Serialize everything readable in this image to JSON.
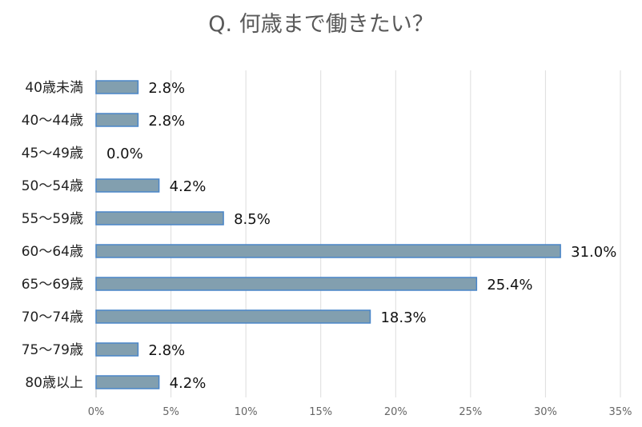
{
  "chart_data": {
    "type": "bar",
    "orientation": "horizontal",
    "title": "Q. 何歳まで働きたい？",
    "categories": [
      "40歳未満",
      "40～44歳",
      "45～49歳",
      "50～54歳",
      "55～59歳",
      "60～64歳",
      "65～69歳",
      "70～74歳",
      "75～79歳",
      "80歳以上"
    ],
    "values": [
      2.8,
      2.8,
      0.0,
      4.2,
      8.5,
      31.0,
      25.4,
      18.3,
      2.8,
      4.2
    ],
    "value_labels": [
      "2.8%",
      "2.8%",
      "0.0%",
      "4.2%",
      "8.5%",
      "31.0%",
      "25.4%",
      "18.3%",
      "2.8%",
      "4.2%"
    ],
    "xlim": [
      0,
      35
    ],
    "xticks": [
      0,
      5,
      10,
      15,
      20,
      25,
      30,
      35
    ],
    "xtick_labels": [
      "0%",
      "5%",
      "10%",
      "15%",
      "20%",
      "25%",
      "30%",
      "35%"
    ],
    "grid": "vertical",
    "bar_color": "#829faf",
    "bar_edge_color": "#4a86c8"
  }
}
